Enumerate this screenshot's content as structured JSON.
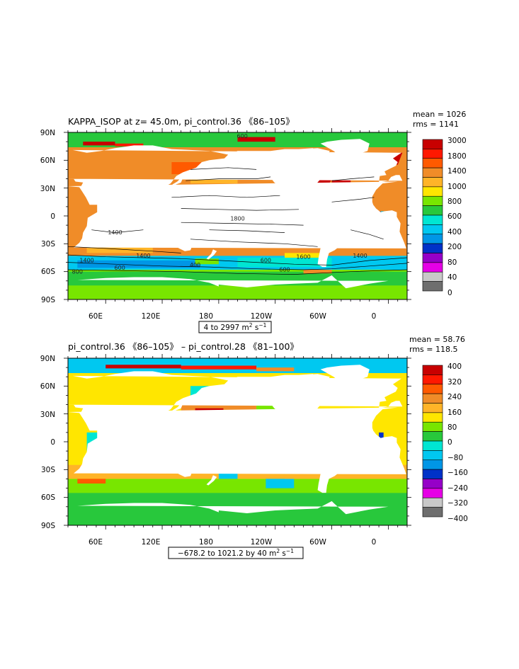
{
  "colors": {
    "land": "#ffffff",
    "frame": "#000000",
    "contour": "#000000"
  },
  "chart_data": [
    {
      "type": "heatmap",
      "subtype": "global ocean filled-contour map with contour lines",
      "title": "KAPPA_ISOP at z=  45.0m, pi_control.36 《86–105》",
      "stats": {
        "mean": "mean = 1026",
        "rms": "rms = 1141"
      },
      "x_ticks": [
        "60E",
        "120E",
        "180",
        "120W",
        "60W",
        "0"
      ],
      "y_ticks": [
        "90N",
        "60N",
        "30N",
        "0",
        "30S",
        "60S",
        "90S"
      ],
      "xlim": [
        20,
        380
      ],
      "ylim": [
        -90,
        90
      ],
      "range_label": {
        "prefix": "4 to 2997 m",
        "sup1": "2",
        "mid": " s",
        "sup2": "−1"
      },
      "colorbar": {
        "labels": [
          "3000",
          "1800",
          "1400",
          "1000",
          "800",
          "600",
          "400",
          "200",
          "80",
          "40",
          "0"
        ],
        "colors": [
          "#c80000",
          "#ff1800",
          "#ff5a00",
          "#f08c28",
          "#ffb428",
          "#ffe600",
          "#78e600",
          "#28c83c",
          "#00e6d2",
          "#00c8f0",
          "#0096e6",
          "#0032c8",
          "#9600c8",
          "#e600e6",
          "#c8c8c8",
          "#6e6e6e"
        ]
      },
      "contour_labels": [
        "600",
        "1400",
        "1400",
        "1800",
        "1400",
        "1600",
        "600",
        "600",
        "1400",
        "600",
        "400",
        "800"
      ]
    },
    {
      "type": "heatmap",
      "subtype": "global ocean filled-contour difference map",
      "title": "pi_control.36 《86–105》 – pi_control.28 《81–100》",
      "stats": {
        "mean": "mean = 58.76",
        "rms": "rms = 118.5"
      },
      "x_ticks": [
        "60E",
        "120E",
        "180",
        "120W",
        "60W",
        "0"
      ],
      "y_ticks": [
        "90N",
        "60N",
        "30N",
        "0",
        "30S",
        "60S",
        "90S"
      ],
      "xlim": [
        20,
        380
      ],
      "ylim": [
        -90,
        90
      ],
      "range_label": {
        "prefix": "−678.2 to 1021.2 by 40 m",
        "sup1": "2",
        "mid": " s",
        "sup2": "−1"
      },
      "colorbar": {
        "labels": [
          "400",
          "320",
          "240",
          "160",
          "80",
          "0",
          "−80",
          "−160",
          "−240",
          "−320",
          "−400"
        ],
        "colors": [
          "#c80000",
          "#ff1800",
          "#ff5a00",
          "#f08c28",
          "#ffb428",
          "#ffe600",
          "#78e600",
          "#28c83c",
          "#00e6d2",
          "#00c8f0",
          "#0096e6",
          "#0032c8",
          "#9600c8",
          "#e600e6",
          "#c8c8c8",
          "#6e6e6e"
        ]
      }
    }
  ]
}
